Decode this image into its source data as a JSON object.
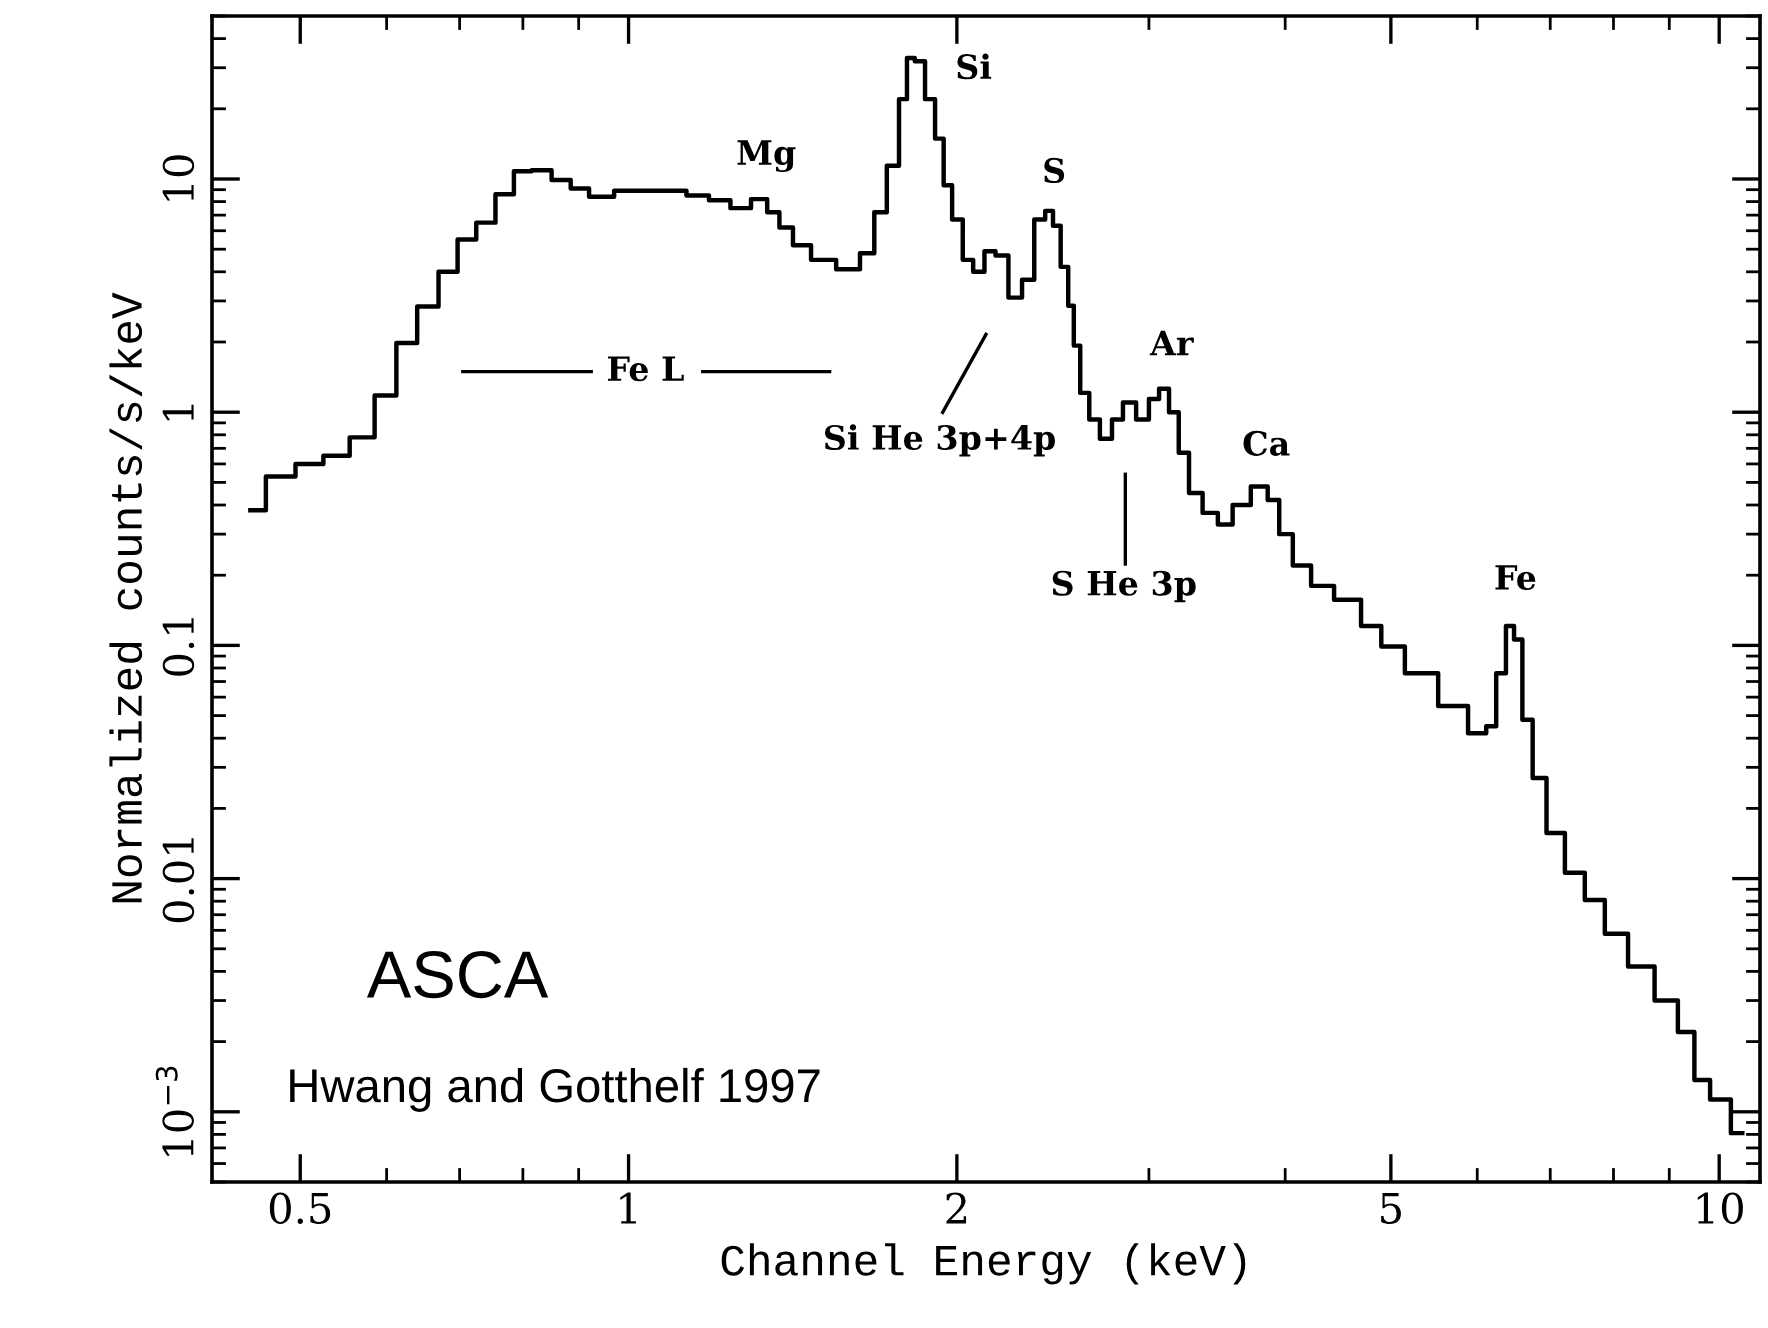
{
  "chart_data": {
    "type": "step",
    "xlabel": "Channel Energy (keV)",
    "ylabel": "Normalized counts/s/keV",
    "log": "xy",
    "xlim": [
      0.415,
      10.9
    ],
    "ylim": [
      0.0005,
      50
    ],
    "xticks": [
      0.5,
      1,
      2,
      5,
      10
    ],
    "yticks": [
      {
        "value": 0.001,
        "label": "10$^{−3}$"
      },
      0.01,
      0.1,
      1,
      10
    ],
    "grid": false,
    "legend": false,
    "series": [
      {
        "color": "#000000",
        "x": [
          0.45,
          0.48,
          0.51,
          0.54,
          0.57,
          0.6,
          0.625,
          0.655,
          0.684,
          0.71,
          0.74,
          0.77,
          0.8,
          0.83,
          0.87,
          0.9,
          0.94,
          1.0,
          1.05,
          1.1,
          1.16,
          1.21,
          1.27,
          1.32,
          1.36,
          1.39,
          1.44,
          1.5,
          1.6,
          1.66,
          1.7,
          1.75,
          1.79,
          1.81,
          1.85,
          1.89,
          1.93,
          1.96,
          2.0,
          2.05,
          2.09,
          2.15,
          2.19,
          2.27,
          2.32,
          2.39,
          2.43,
          2.47,
          2.51,
          2.55,
          2.57,
          2.62,
          2.67,
          2.74,
          2.81,
          2.87,
          2.97,
          3.03,
          3.1,
          3.16,
          3.23,
          3.3,
          3.42,
          3.52,
          3.64,
          3.8,
          3.91,
          3.99,
          4.14,
          4.31,
          4.56,
          4.83,
          4.97,
          5.33,
          5.72,
          6.05,
          6.18,
          6.31,
          6.44,
          6.53,
          6.67,
          6.82,
          7.07,
          7.37,
          7.69,
          8.02,
          8.48,
          8.97,
          9.36,
          9.62,
          10.0,
          10.5
        ],
        "values": [
          0.38,
          0.53,
          0.6,
          0.65,
          0.78,
          1.18,
          1.98,
          2.84,
          4.0,
          5.5,
          6.5,
          8.6,
          10.8,
          10.9,
          9.9,
          9.1,
          8.4,
          8.9,
          8.9,
          8.9,
          8.5,
          8.1,
          7.5,
          8.2,
          7.2,
          6.2,
          5.2,
          4.5,
          4.1,
          4.8,
          7.2,
          11.4,
          22,
          33,
          32,
          22,
          14.9,
          9.4,
          6.7,
          4.5,
          4.0,
          4.9,
          4.7,
          3.1,
          3.7,
          6.7,
          7.3,
          6.3,
          4.2,
          2.86,
          1.93,
          1.21,
          0.93,
          0.77,
          0.93,
          1.1,
          0.93,
          1.14,
          1.26,
          1.0,
          0.67,
          0.45,
          0.37,
          0.33,
          0.4,
          0.48,
          0.42,
          0.3,
          0.22,
          0.18,
          0.157,
          0.121,
          0.099,
          0.076,
          0.055,
          0.042,
          0.045,
          0.076,
          0.121,
          0.106,
          0.048,
          0.027,
          0.0157,
          0.0106,
          0.0081,
          0.0058,
          0.0042,
          0.003,
          0.0022,
          0.00137,
          0.00113,
          0.00081
        ]
      }
    ],
    "annotations": [
      "Mg",
      "Si",
      "S",
      "Ar",
      "Ca",
      "Fe",
      "Si He 3p+4p",
      "S He 3p",
      "ASCA",
      "Hwang and Gotthelf 1997",
      "Fe L"
    ]
  }
}
